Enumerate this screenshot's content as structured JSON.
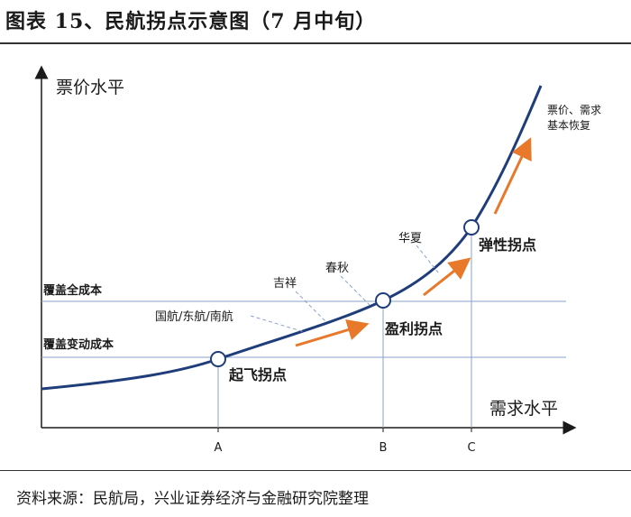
{
  "title": "图表 15、民航拐点示意图（7 月中旬）",
  "source": "资料来源：民航局，兴业证券经济与金融研究院整理",
  "diagram": {
    "y_axis_label": "票价水平",
    "x_axis_label": "需求水平",
    "lines": {
      "full_cost": "覆盖全成本",
      "variable_cost": "覆盖变动成本"
    },
    "x_ticks": [
      "A",
      "B",
      "C"
    ],
    "points": {
      "takeoff": "起飞拐点",
      "profit": "盈利拐点",
      "elastic": "弹性拐点"
    },
    "airlines": {
      "big_three": "国航/东航/南航",
      "juneyao": "吉祥",
      "spring": "春秋",
      "china_express": "华夏"
    },
    "recovery": [
      "票价、需求",
      "基本恢复"
    ],
    "colors": {
      "curve": "#1f3d7a",
      "arrow": "#e8782a",
      "grid": "#8aa0c8"
    }
  }
}
